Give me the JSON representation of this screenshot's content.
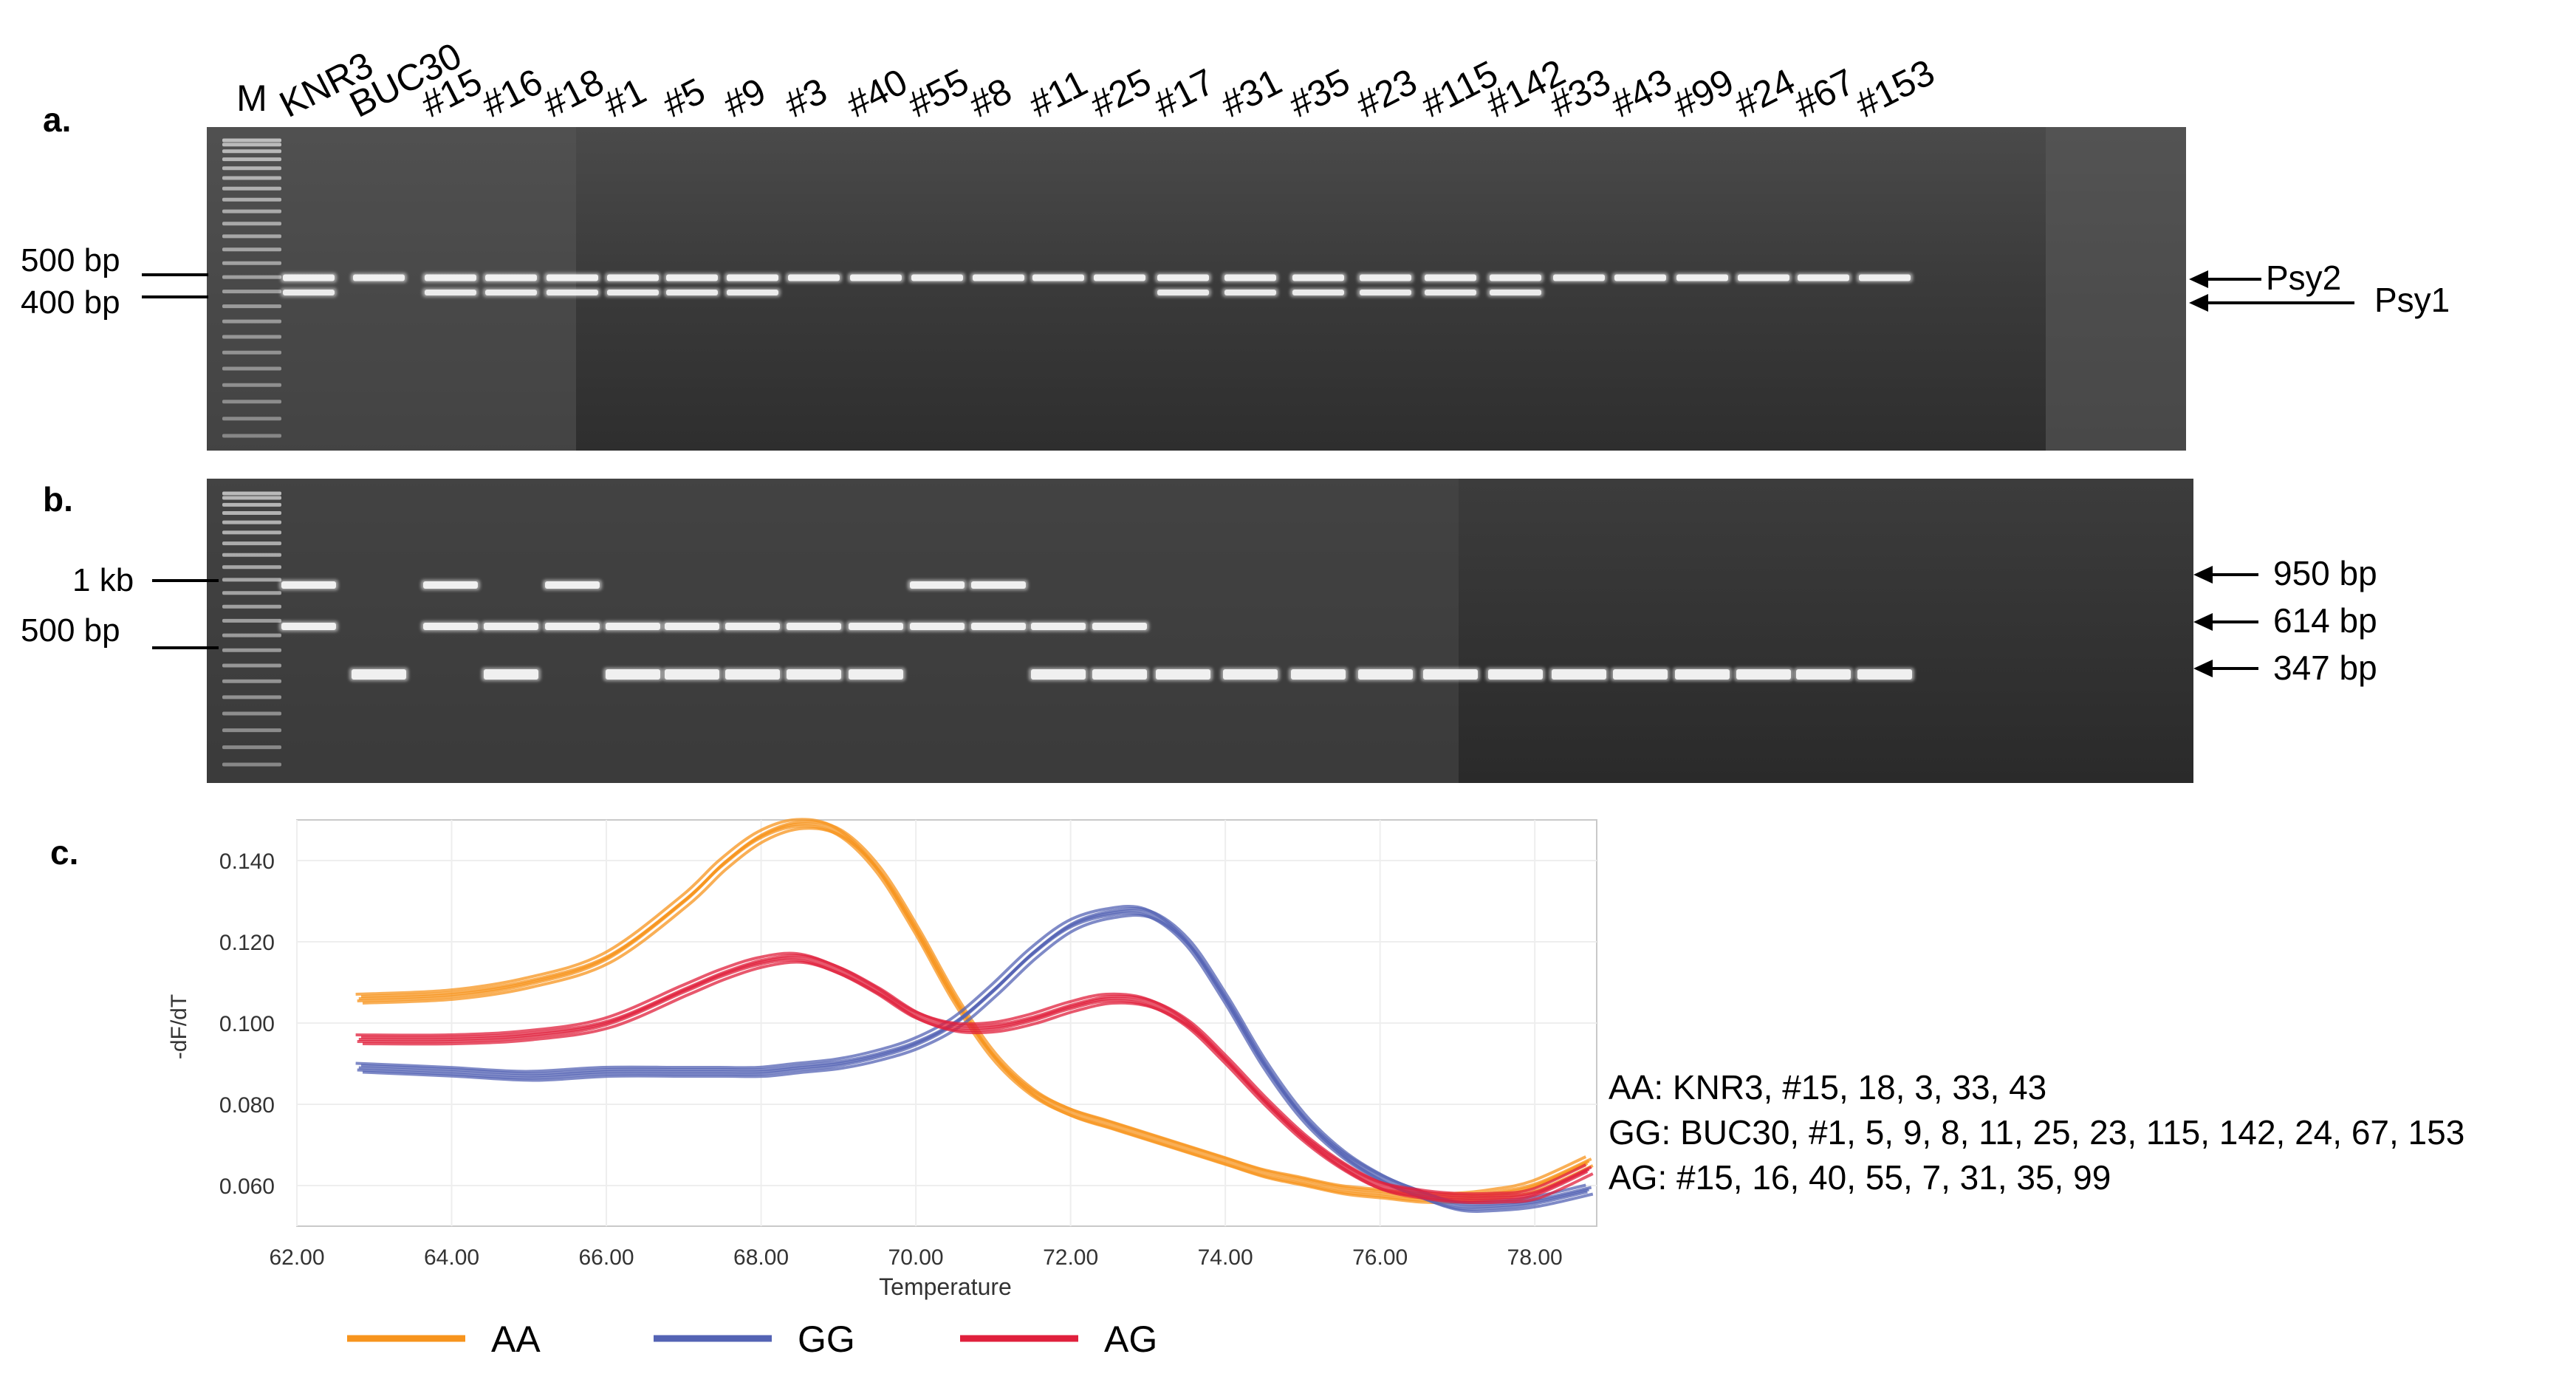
{
  "panels": {
    "a": "a.",
    "b": "b.",
    "c": "c."
  },
  "lanes": [
    "M",
    "KNR3",
    "BUC30",
    "#15",
    "#16",
    "#18",
    "#1",
    "#5",
    "#9",
    "#3",
    "#40",
    "#55",
    "#8",
    "#11",
    "#25",
    "#17",
    "#31",
    "#35",
    "#23",
    "#115",
    "#142",
    "#33",
    "#43",
    "#99",
    "#24",
    "#67",
    "#153"
  ],
  "gel_a": {
    "markers": [
      "500 bp",
      "400 bp"
    ],
    "arrows": [
      "Psy2",
      "Psy1"
    ],
    "band_pattern": [
      "ladder",
      "psy1+psy2",
      "psy2",
      "psy1+psy2",
      "psy1+psy2",
      "psy1+psy2",
      "psy1+psy2",
      "psy1+psy2",
      "psy1+psy2",
      "psy2",
      "psy2",
      "psy2",
      "psy2",
      "psy2",
      "psy2",
      "psy1+psy2",
      "psy1+psy2",
      "psy1+psy2",
      "psy1+psy2",
      "psy1+psy2",
      "psy1+psy2",
      "psy2",
      "psy2",
      "psy2",
      "psy2",
      "psy2",
      "psy2"
    ]
  },
  "gel_b": {
    "markers": [
      "1 kb",
      "500 bp"
    ],
    "arrows": [
      "950 bp",
      "614 bp",
      "347 bp"
    ],
    "band_pattern": [
      "ladder",
      "950+614",
      "347",
      "950+614",
      "614+347",
      "950+614",
      "614+347",
      "614+347",
      "614+347",
      "614+347",
      "614+347",
      "950+614",
      "950+614",
      "614+347",
      "614+347",
      "347",
      "347",
      "347",
      "347",
      "347",
      "347",
      "347",
      "347",
      "347",
      "347",
      "347",
      "347"
    ]
  },
  "chart_data": {
    "type": "line",
    "title": "",
    "xlabel": "Temperature",
    "ylabel": "-dF/dT",
    "xlim": [
      62.0,
      78.8
    ],
    "ylim": [
      0.05,
      0.15
    ],
    "xticks": [
      "62.00",
      "64.00",
      "66.00",
      "68.00",
      "70.00",
      "72.00",
      "74.00",
      "76.00",
      "78.00"
    ],
    "yticks": [
      "0.060",
      "0.080",
      "0.100",
      "0.120",
      "0.140"
    ],
    "x": [
      62.8,
      64,
      65,
      66,
      67,
      67.5,
      68,
      68.5,
      69,
      69.5,
      70,
      70.5,
      71,
      71.5,
      72,
      72.5,
      73,
      73.5,
      74,
      74.5,
      75,
      75.5,
      76,
      76.5,
      77,
      77.5,
      78,
      78.7
    ],
    "series": [
      {
        "name": "AA",
        "color": "#f7941d",
        "values": [
          0.106,
          0.107,
          0.11,
          0.116,
          0.13,
          0.139,
          0.146,
          0.149,
          0.147,
          0.138,
          0.123,
          0.106,
          0.092,
          0.083,
          0.078,
          0.075,
          0.072,
          0.069,
          0.066,
          0.063,
          0.061,
          0.059,
          0.058,
          0.057,
          0.057,
          0.058,
          0.06,
          0.066
        ]
      },
      {
        "name": "GG",
        "color": "#5463b4",
        "values": [
          0.089,
          0.088,
          0.087,
          0.088,
          0.088,
          0.088,
          0.088,
          0.089,
          0.09,
          0.092,
          0.095,
          0.1,
          0.108,
          0.117,
          0.124,
          0.127,
          0.127,
          0.12,
          0.106,
          0.09,
          0.077,
          0.068,
          0.062,
          0.058,
          0.055,
          0.055,
          0.056,
          0.059
        ]
      },
      {
        "name": "AG",
        "color": "#e0203c",
        "values": [
          0.096,
          0.096,
          0.097,
          0.1,
          0.108,
          0.112,
          0.115,
          0.116,
          0.113,
          0.108,
          0.102,
          0.099,
          0.099,
          0.101,
          0.104,
          0.106,
          0.105,
          0.1,
          0.091,
          0.081,
          0.072,
          0.065,
          0.06,
          0.058,
          0.057,
          0.057,
          0.058,
          0.064
        ]
      }
    ],
    "legend": [
      "AA",
      "GG",
      "AG"
    ],
    "legend_position": "bottom"
  },
  "genotypes": {
    "AA": "AA: KNR3, #15, 18, 3, 33, 43",
    "GG": "GG: BUC30, #1, 5, 9, 8, 11, 25, 23, 115, 142, 24, 67, 153",
    "AG": "AG: #15, 16, 40, 55, 7, 31, 35, 99"
  }
}
